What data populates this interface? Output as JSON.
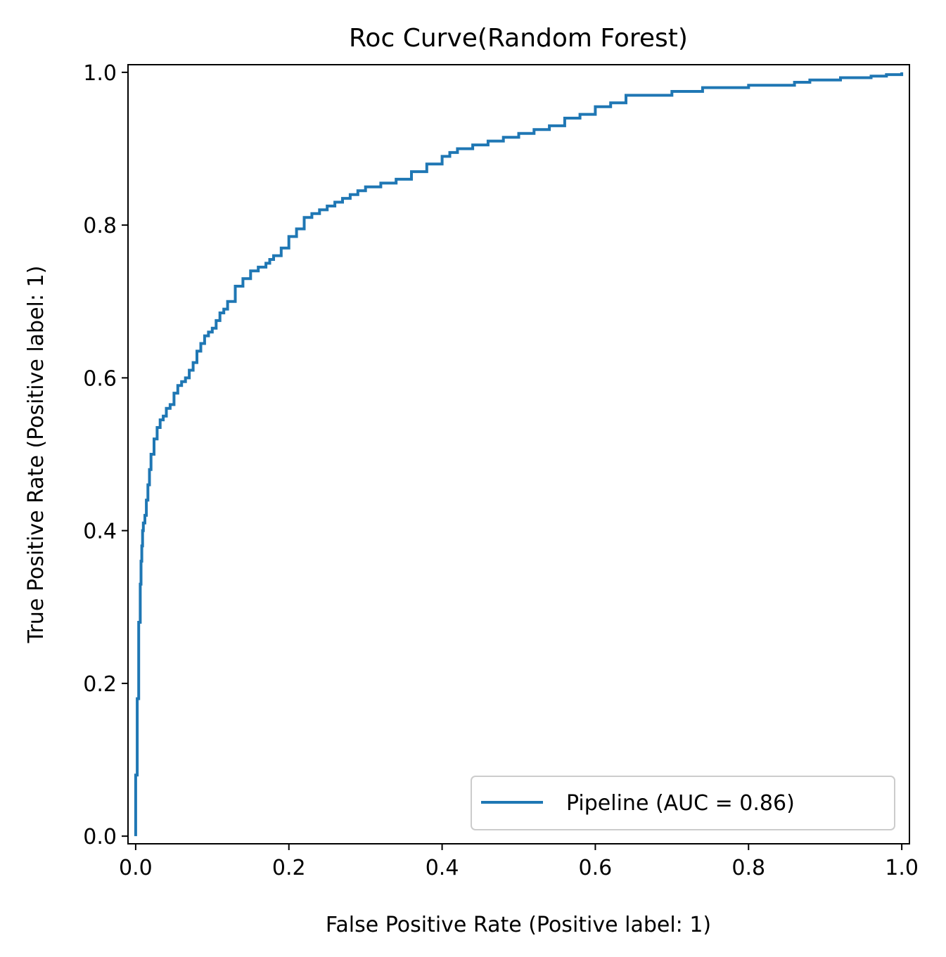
{
  "chart_data": {
    "type": "line",
    "title": "Roc Curve(Random Forest)",
    "xlabel": "False Positive Rate (Positive label: 1)",
    "ylabel": "True Positive Rate (Positive label: 1)",
    "xlim": [
      -0.01,
      1.01
    ],
    "ylim": [
      -0.01,
      1.01
    ],
    "xticks": [
      0.0,
      0.2,
      0.4,
      0.6,
      0.8,
      1.0
    ],
    "yticks": [
      0.0,
      0.2,
      0.4,
      0.6,
      0.8,
      1.0
    ],
    "tick_labels": [
      "0.0",
      "0.2",
      "0.4",
      "0.6",
      "0.8",
      "1.0"
    ],
    "grid": false,
    "legend": {
      "position": "lower-right"
    },
    "series": [
      {
        "name": "Pipeline (AUC = 0.86)",
        "color": "#1f77b4",
        "x": [
          0.0,
          0.0,
          0.002,
          0.002,
          0.004,
          0.004,
          0.006,
          0.007,
          0.008,
          0.009,
          0.01,
          0.012,
          0.014,
          0.016,
          0.018,
          0.02,
          0.024,
          0.028,
          0.032,
          0.036,
          0.04,
          0.045,
          0.05,
          0.055,
          0.06,
          0.065,
          0.07,
          0.075,
          0.08,
          0.085,
          0.09,
          0.095,
          0.1,
          0.105,
          0.11,
          0.115,
          0.12,
          0.13,
          0.14,
          0.15,
          0.16,
          0.17,
          0.175,
          0.18,
          0.19,
          0.2,
          0.21,
          0.22,
          0.23,
          0.24,
          0.25,
          0.26,
          0.27,
          0.28,
          0.29,
          0.3,
          0.32,
          0.34,
          0.36,
          0.38,
          0.4,
          0.41,
          0.42,
          0.44,
          0.46,
          0.48,
          0.5,
          0.52,
          0.54,
          0.56,
          0.58,
          0.6,
          0.62,
          0.64,
          0.66,
          0.7,
          0.74,
          0.8,
          0.86,
          0.88,
          0.92,
          0.96,
          0.98,
          1.0
        ],
        "y": [
          0.0,
          0.08,
          0.14,
          0.18,
          0.21,
          0.28,
          0.33,
          0.36,
          0.38,
          0.4,
          0.41,
          0.42,
          0.44,
          0.46,
          0.48,
          0.5,
          0.52,
          0.535,
          0.545,
          0.55,
          0.56,
          0.565,
          0.58,
          0.59,
          0.595,
          0.6,
          0.61,
          0.62,
          0.635,
          0.645,
          0.655,
          0.66,
          0.665,
          0.675,
          0.685,
          0.69,
          0.7,
          0.72,
          0.73,
          0.74,
          0.745,
          0.75,
          0.755,
          0.76,
          0.77,
          0.785,
          0.795,
          0.81,
          0.815,
          0.82,
          0.825,
          0.83,
          0.835,
          0.84,
          0.845,
          0.85,
          0.855,
          0.86,
          0.87,
          0.88,
          0.89,
          0.895,
          0.9,
          0.905,
          0.91,
          0.915,
          0.92,
          0.925,
          0.93,
          0.94,
          0.945,
          0.955,
          0.96,
          0.97,
          0.97,
          0.975,
          0.98,
          0.983,
          0.987,
          0.99,
          0.993,
          0.995,
          0.997,
          1.0
        ]
      }
    ]
  }
}
